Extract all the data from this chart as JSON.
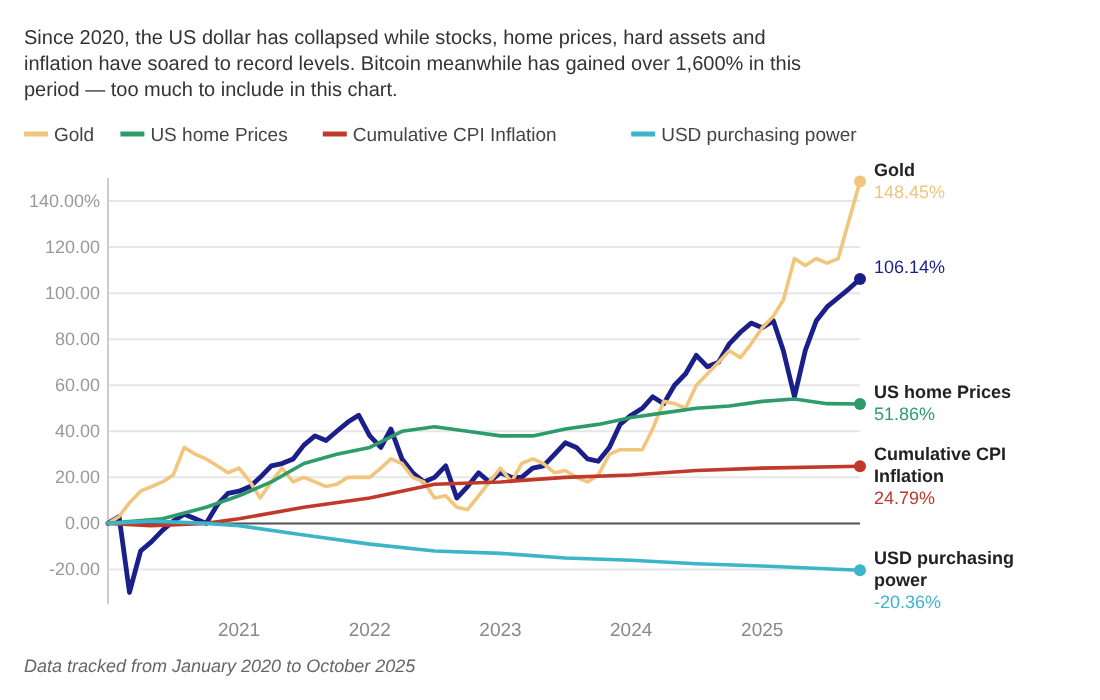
{
  "chart_data": {
    "type": "line",
    "subtitle": "Since 2020, the US dollar has collapsed while stocks, home prices, hard assets and inflation have soared to record levels. Bitcoin meanwhile has gained over 1,600% in this period — too much to include in this chart.",
    "xlim": [
      "2020-01",
      "2025-10"
    ],
    "xticks": [
      "2021",
      "2022",
      "2023",
      "2024",
      "2025"
    ],
    "ylim": [
      -35,
      150
    ],
    "yticks": [
      {
        "value": -20,
        "label": "-20.00"
      },
      {
        "value": 0,
        "label": "0.00"
      },
      {
        "value": 20,
        "label": "20.00"
      },
      {
        "value": 40,
        "label": "40.00"
      },
      {
        "value": 60,
        "label": "60.00"
      },
      {
        "value": 80,
        "label": "80.00"
      },
      {
        "value": 100,
        "label": "100.00"
      },
      {
        "value": 120,
        "label": "120.00"
      },
      {
        "value": 140,
        "label": "140.00%"
      }
    ],
    "grid": "y",
    "legend": "top",
    "line_style": "solid",
    "ref_lines": [
      {
        "axis": "y",
        "value": 0,
        "color": "#555555"
      }
    ],
    "series": [
      {
        "color": "#1b1f8a",
        "x": [
          "2020-01",
          "2020-02",
          "2020-03",
          "2020-04",
          "2020-05",
          "2020-06",
          "2020-07",
          "2020-08",
          "2020-09",
          "2020-10",
          "2020-11",
          "2020-12",
          "2021-01",
          "2021-02",
          "2021-03",
          "2021-04",
          "2021-05",
          "2021-06",
          "2021-07",
          "2021-08",
          "2021-09",
          "2021-10",
          "2021-11",
          "2021-12",
          "2022-01",
          "2022-02",
          "2022-03",
          "2022-04",
          "2022-05",
          "2022-06",
          "2022-07",
          "2022-08",
          "2022-09",
          "2022-10",
          "2022-11",
          "2022-12",
          "2023-01",
          "2023-02",
          "2023-03",
          "2023-04",
          "2023-05",
          "2023-06",
          "2023-07",
          "2023-08",
          "2023-09",
          "2023-10",
          "2023-11",
          "2023-12",
          "2024-01",
          "2024-02",
          "2024-03",
          "2024-04",
          "2024-05",
          "2024-06",
          "2024-07",
          "2024-08",
          "2024-09",
          "2024-10",
          "2024-11",
          "2024-12",
          "2025-01",
          "2025-02",
          "2025-03",
          "2025-04",
          "2025-05",
          "2025-06",
          "2025-07",
          "2025-08",
          "2025-09",
          "2025-10"
        ],
        "values": [
          0,
          3,
          -30,
          -12,
          -8,
          -3,
          1,
          4,
          2,
          0,
          8,
          13,
          14,
          16,
          20,
          25,
          26,
          28,
          34,
          38,
          36,
          40,
          44,
          47,
          38,
          33,
          41,
          28,
          22,
          18,
          20,
          25,
          11,
          16,
          22,
          18,
          22,
          20,
          20,
          24,
          25,
          30,
          35,
          33,
          28,
          27,
          33,
          43,
          47,
          50,
          55,
          52,
          60,
          65,
          73,
          68,
          70,
          78,
          83,
          87,
          85,
          88,
          75,
          55,
          75,
          88,
          94,
          98,
          102,
          106.14
        ]
      },
      {
        "name": "Gold",
        "color": "#f2c57c",
        "x": [
          "2020-01",
          "2020-02",
          "2020-03",
          "2020-04",
          "2020-05",
          "2020-06",
          "2020-07",
          "2020-08",
          "2020-09",
          "2020-10",
          "2020-11",
          "2020-12",
          "2021-01",
          "2021-02",
          "2021-03",
          "2021-04",
          "2021-05",
          "2021-06",
          "2021-07",
          "2021-08",
          "2021-09",
          "2021-10",
          "2021-11",
          "2021-12",
          "2022-01",
          "2022-02",
          "2022-03",
          "2022-04",
          "2022-05",
          "2022-06",
          "2022-07",
          "2022-08",
          "2022-09",
          "2022-10",
          "2022-11",
          "2022-12",
          "2023-01",
          "2023-02",
          "2023-03",
          "2023-04",
          "2023-05",
          "2023-06",
          "2023-07",
          "2023-08",
          "2023-09",
          "2023-10",
          "2023-11",
          "2023-12",
          "2024-01",
          "2024-02",
          "2024-03",
          "2024-04",
          "2024-05",
          "2024-06",
          "2024-07",
          "2024-08",
          "2024-09",
          "2024-10",
          "2024-11",
          "2024-12",
          "2025-01",
          "2025-02",
          "2025-03",
          "2025-04",
          "2025-05",
          "2025-06",
          "2025-07",
          "2025-08",
          "2025-09",
          "2025-10"
        ],
        "values": [
          0,
          3,
          9,
          14,
          16,
          18,
          21,
          33,
          30,
          28,
          25,
          22,
          24,
          18,
          11,
          18,
          24,
          18,
          20,
          18,
          16,
          17,
          20,
          20,
          20,
          24,
          28,
          26,
          20,
          18,
          11,
          12,
          7,
          6,
          12,
          18,
          24,
          18,
          26,
          28,
          26,
          22,
          23,
          20,
          18,
          21,
          30,
          32,
          32,
          32,
          41,
          53,
          52,
          50,
          60,
          65,
          70,
          75,
          72,
          78,
          85,
          90,
          97,
          115,
          112,
          115,
          113,
          115,
          132,
          148.45
        ]
      },
      {
        "name": "US home Prices",
        "color": "#2e9c6a",
        "x": [
          "2020-01",
          "2020-06",
          "2020-10",
          "2021-01",
          "2021-04",
          "2021-07",
          "2021-10",
          "2022-01",
          "2022-04",
          "2022-07",
          "2022-10",
          "2023-01",
          "2023-04",
          "2023-07",
          "2023-10",
          "2024-01",
          "2024-04",
          "2024-07",
          "2024-10",
          "2025-01",
          "2025-04",
          "2025-07",
          "2025-10"
        ],
        "values": [
          0,
          2,
          7,
          12,
          18,
          26,
          30,
          33,
          40,
          42,
          40,
          38,
          38,
          41,
          43,
          46,
          48,
          50,
          51,
          53,
          54,
          52,
          51.86
        ]
      },
      {
        "name": "Cumulative CPI Inflation",
        "color": "#c0392b",
        "x": [
          "2020-01",
          "2020-05",
          "2020-10",
          "2021-01",
          "2021-07",
          "2022-01",
          "2022-07",
          "2023-01",
          "2023-07",
          "2024-01",
          "2024-07",
          "2025-01",
          "2025-10"
        ],
        "values": [
          0,
          -1,
          0,
          2,
          7,
          11,
          17,
          18,
          20,
          21,
          23,
          24,
          24.79
        ]
      },
      {
        "name": "USD purchasing power",
        "color": "#3db5c8",
        "x": [
          "2020-01",
          "2020-05",
          "2020-10",
          "2021-01",
          "2021-07",
          "2022-01",
          "2022-07",
          "2023-01",
          "2023-07",
          "2024-01",
          "2024-07",
          "2025-01",
          "2025-10"
        ],
        "values": [
          0,
          1,
          0,
          -1,
          -5,
          -9,
          -12,
          -13,
          -15,
          -16,
          -17.5,
          -18.5,
          -20.36
        ]
      }
    ],
    "annotations": [
      {
        "text": "148.45%",
        "x": "2025-10",
        "y": 148.45
      },
      {
        "text": "106.14%",
        "x": "2025-10",
        "y": 106.14
      },
      {
        "text": "51.86%",
        "x": "2025-10",
        "y": 51.86
      },
      {
        "text": "24.79%",
        "x": "2025-10",
        "y": 24.79
      },
      {
        "text": "-20.36%",
        "x": "2025-10",
        "y": -20.36
      },
      "Data tracked from January 2020 to October 2025"
    ]
  }
}
